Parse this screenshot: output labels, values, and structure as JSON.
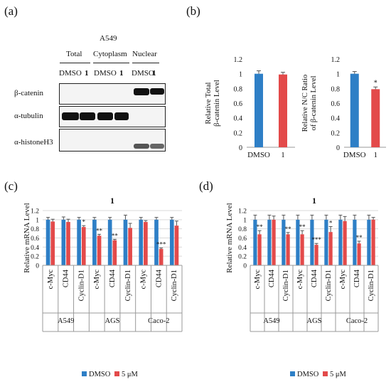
{
  "panels": {
    "a": {
      "label": "(a)",
      "cell_line": "A549",
      "fractions": [
        "Total",
        "Cytoplasm",
        "Nuclear"
      ],
      "treatments": [
        "DMSO",
        "1"
      ],
      "blots": [
        "β-catenin",
        "α-tubulin",
        "α-histoneH3"
      ]
    },
    "b": {
      "label": "(b)"
    },
    "c": {
      "label": "(c)"
    },
    "d": {
      "label": "(d)"
    }
  },
  "chart_data": [
    {
      "id": "b1",
      "type": "bar",
      "categories": [
        "DMSO",
        "1"
      ],
      "values": [
        1.0,
        0.99
      ],
      "errors": [
        0.04,
        0.03
      ],
      "colors": [
        "#2e7fc6",
        "#e34a4a"
      ],
      "significance": [
        "",
        ""
      ],
      "ylabel": "Relative Total β-catenin Level",
      "ylim": [
        0,
        1.2
      ],
      "yticks": [
        "0",
        "0.2",
        "0.4",
        "0.6",
        "0.8",
        "1",
        "1.2"
      ]
    },
    {
      "id": "b2",
      "type": "bar",
      "categories": [
        "DMSO",
        "1"
      ],
      "values": [
        1.0,
        0.79
      ],
      "errors": [
        0.03,
        0.03
      ],
      "colors": [
        "#2e7fc6",
        "#e34a4a"
      ],
      "significance": [
        "",
        "*"
      ],
      "ylabel": "Relative N/C Ratio of β-catenin Level",
      "ylim": [
        0,
        1.2
      ],
      "yticks": [
        "0",
        "0.2",
        "0.4",
        "0.6",
        "0.8",
        "1",
        "1.2"
      ]
    },
    {
      "id": "c",
      "type": "bar",
      "title": "1",
      "ylabel": "Relative mRNA Level",
      "ylim": [
        0,
        1.2
      ],
      "yticks": [
        "0",
        "0.2",
        "0.4",
        "0.6",
        "0.8",
        "1",
        "1.2"
      ],
      "categories": [
        "c-Myc",
        "CD44",
        "Cyclin-D1",
        "c-Myc",
        "CD44",
        "Cyclin-D1",
        "c-Myc",
        "CD44",
        "Cyclin-D1"
      ],
      "groups": [
        "A549",
        "AGS",
        "Caco-2"
      ],
      "series": [
        {
          "name": "DMSO",
          "color": "#2e7fc6",
          "values": [
            1.0,
            1.0,
            1.0,
            1.0,
            1.0,
            1.0,
            1.0,
            1.0,
            1.0
          ],
          "errors": [
            0.05,
            0.06,
            0.05,
            0.05,
            0.05,
            0.1,
            0.05,
            0.05,
            0.05
          ]
        },
        {
          "name": "5 μM",
          "color": "#e34a4a",
          "values": [
            0.96,
            0.95,
            0.84,
            0.65,
            0.55,
            0.82,
            0.95,
            0.36,
            0.87
          ],
          "errors": [
            0.05,
            0.06,
            0.03,
            0.03,
            0.02,
            0.1,
            0.03,
            0.02,
            0.1
          ]
        }
      ],
      "significance": [
        "",
        "",
        "*",
        "**",
        "**",
        "",
        "",
        "***",
        ""
      ]
    },
    {
      "id": "d",
      "type": "bar",
      "title": "1",
      "ylabel": "Relative mRNA Level",
      "ylim": [
        0,
        1.2
      ],
      "yticks": [
        "0",
        "0.2",
        "0.4",
        "0.6",
        "0.8",
        "1",
        "1.2"
      ],
      "categories": [
        "c-Myc",
        "CD44",
        "Cyclin-D1",
        "c-Myc",
        "CD44",
        "Cyclin-D1",
        "c-Myc",
        "CD44",
        "Cyclin-D1"
      ],
      "groups": [
        "A549",
        "AGS",
        "Caco-2"
      ],
      "series": [
        {
          "name": "DMSO",
          "color": "#2e7fc6",
          "values": [
            1.0,
            1.0,
            1.0,
            1.0,
            1.0,
            1.0,
            1.0,
            1.0,
            1.0
          ],
          "errors": [
            0.1,
            0.1,
            0.1,
            0.1,
            0.1,
            0.1,
            0.1,
            0.1,
            0.1
          ]
        },
        {
          "name": "5 μM",
          "color": "#e34a4a",
          "values": [
            0.68,
            1.0,
            0.68,
            0.68,
            0.45,
            0.73,
            0.97,
            0.48,
            1.0
          ],
          "errors": [
            0.08,
            0.08,
            0.04,
            0.08,
            0.03,
            0.12,
            0.1,
            0.05,
            0.05
          ]
        }
      ],
      "significance": [
        "**",
        "",
        "**",
        "**",
        "***",
        "*",
        "",
        "**",
        ""
      ]
    }
  ]
}
